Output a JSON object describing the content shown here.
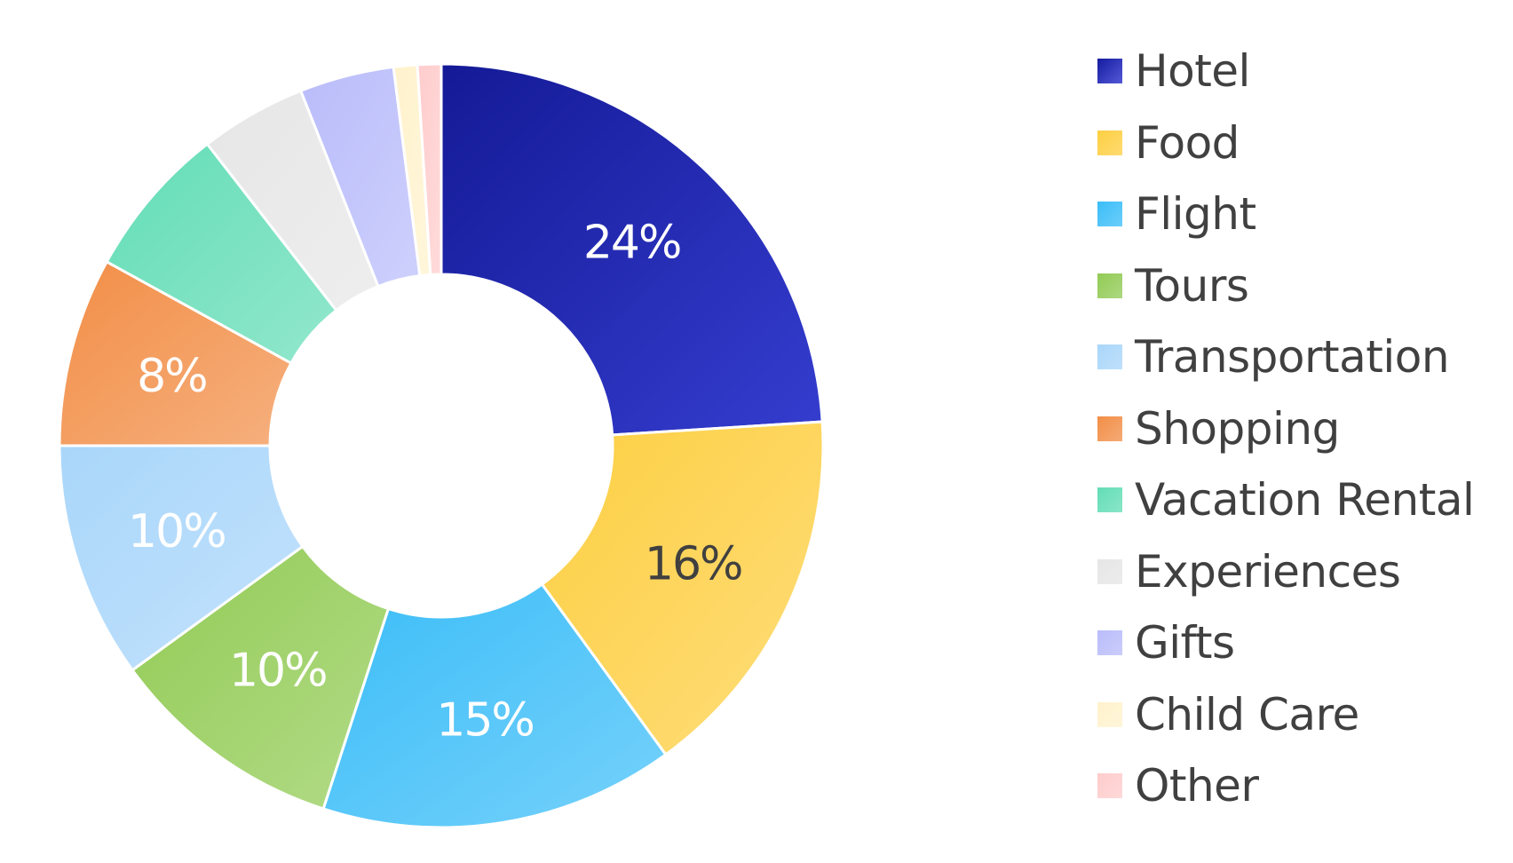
{
  "chart_data": {
    "type": "pie",
    "donut": true,
    "legend_position": "right",
    "categories": [
      "Hotel",
      "Food",
      "Flight",
      "Tours",
      "Transportation",
      "Shopping",
      "Vacation Rental",
      "Experiences",
      "Gifts",
      "Child Care",
      "Other"
    ],
    "values": [
      24,
      16,
      15,
      10,
      10,
      8,
      6.5,
      4.5,
      4,
      1,
      1
    ],
    "data_labels": [
      "24%",
      "16%",
      "15%",
      "10%",
      "10%",
      "8%",
      "",
      "",
      "",
      "",
      ""
    ],
    "colors": [
      "#1A22C8",
      "#FDCF42",
      "#3BBDF8",
      "#92CB55",
      "#A9D6FA",
      "#F28E47",
      "#63DDB6",
      "#E6E6E6",
      "#B9BCFA",
      "#FFF2CC",
      "#FFCCCC"
    ],
    "label_colors": [
      "#ffffff",
      "#404040",
      "#ffffff",
      "#ffffff",
      "#ffffff",
      "#ffffff",
      "#ffffff",
      "#ffffff",
      "#ffffff",
      "#ffffff",
      "#ffffff"
    ]
  }
}
